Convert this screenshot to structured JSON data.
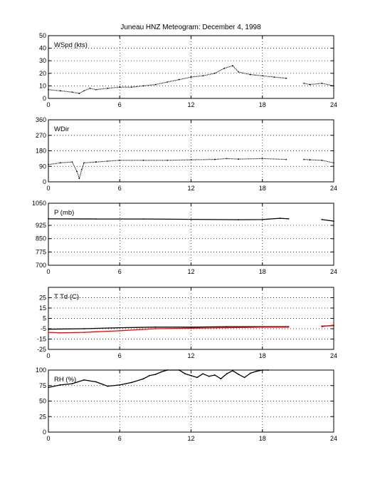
{
  "title": "Juneau HNZ Meteogram:  December  4, 1998",
  "chart_data": [
    {
      "type": "scatter",
      "panel_label": "WSpd (kts)",
      "xlim": [
        0,
        24
      ],
      "ylim": [
        0,
        50
      ],
      "xticks": [
        "0",
        "6",
        "12",
        "18",
        "24"
      ],
      "yticks": [
        "0",
        "10",
        "20",
        "30",
        "40",
        "50"
      ],
      "grid": true,
      "series": [
        {
          "color": "#000000",
          "x": [
            0,
            1,
            2,
            2.6,
            3,
            3.5,
            4,
            5,
            6,
            7,
            8,
            9,
            10,
            11,
            12,
            13,
            14,
            14.8,
            15.5,
            16,
            17,
            18,
            19,
            20,
            20.2,
            21.5,
            22,
            23,
            24
          ],
          "y": [
            7,
            6,
            5,
            4,
            6,
            8,
            7,
            8,
            9,
            9,
            10,
            11,
            13,
            15,
            17,
            18,
            20,
            24,
            26,
            21,
            19,
            18,
            17,
            16,
            null,
            12,
            11,
            12,
            10
          ]
        }
      ]
    },
    {
      "type": "scatter",
      "panel_label": "WDir",
      "xlim": [
        0,
        24
      ],
      "ylim": [
        0,
        360
      ],
      "xticks": [
        "0",
        "6",
        "12",
        "18",
        "24"
      ],
      "yticks": [
        "0",
        "90",
        "180",
        "270",
        "360"
      ],
      "grid": true,
      "series": [
        {
          "color": "#000000",
          "x": [
            0,
            1,
            2,
            2.4,
            2.6,
            2.8,
            3,
            4,
            5,
            6,
            8,
            10,
            12,
            14,
            15,
            16,
            18,
            20,
            20.2,
            21.5,
            22,
            23,
            24
          ],
          "y": [
            100,
            110,
            115,
            60,
            20,
            70,
            110,
            115,
            120,
            125,
            125,
            125,
            128,
            130,
            135,
            132,
            135,
            130,
            null,
            130,
            128,
            125,
            110
          ]
        }
      ]
    },
    {
      "type": "line",
      "panel_label": "P (mb)",
      "xlim": [
        0,
        24
      ],
      "ylim": [
        700,
        1050
      ],
      "xticks": [
        "0",
        "6",
        "12",
        "18",
        "24"
      ],
      "yticks": [
        "700",
        "775",
        "850",
        "925",
        "1050"
      ],
      "grid": true,
      "series": [
        {
          "color": "#000000",
          "x": [
            0,
            4,
            8,
            12,
            16,
            18,
            19.5,
            20.2,
            21.5,
            23,
            24
          ],
          "y": [
            962,
            961,
            961,
            959,
            957,
            958,
            965,
            962,
            null,
            958,
            949
          ]
        }
      ]
    },
    {
      "type": "line",
      "panel_label": "T Td (C)",
      "xlim": [
        0,
        24
      ],
      "ylim": [
        -25,
        35
      ],
      "xticks": [
        "0",
        "6",
        "12",
        "18",
        "24"
      ],
      "yticks": [
        "-25",
        "-15",
        "-5",
        "5",
        "15",
        "25"
      ],
      "grid": true,
      "series": [
        {
          "color": "#000000",
          "x": [
            0,
            3,
            6,
            9,
            12,
            15,
            18,
            20.2,
            21.5,
            23,
            24
          ],
          "y": [
            -5.5,
            -5,
            -4,
            -3.5,
            -3.5,
            -3,
            -3,
            -3,
            null,
            -2.5,
            -2
          ]
        },
        {
          "color": "#ff0000",
          "x": [
            0,
            1,
            3,
            6,
            9,
            12,
            15,
            18,
            20.2,
            21.5,
            23,
            24
          ],
          "y": [
            -8.5,
            -9,
            -8.5,
            -7,
            -5,
            -4.5,
            -4,
            -3.5,
            -3.5,
            null,
            -3,
            -1.5
          ]
        }
      ]
    },
    {
      "type": "line",
      "panel_label": "RH (%)",
      "xlim": [
        0,
        24
      ],
      "ylim": [
        0,
        100
      ],
      "xticks": [
        "0",
        "6",
        "12",
        "18",
        "24"
      ],
      "yticks": [
        "0",
        "25",
        "50",
        "75",
        "100"
      ],
      "grid": true,
      "series": [
        {
          "color": "#000000",
          "x": [
            0,
            1,
            2,
            3,
            4,
            5,
            6,
            7,
            8,
            8.5,
            9,
            9.5,
            10,
            11,
            11.5,
            12,
            12.5,
            13,
            13.5,
            14,
            14.5,
            15,
            15.5,
            16,
            16.5,
            17,
            17.5,
            18,
            18.5
          ],
          "y": [
            72,
            76,
            78,
            84,
            81,
            74,
            76,
            80,
            86,
            91,
            93,
            97,
            100,
            100,
            94,
            91,
            88,
            94,
            90,
            92,
            86,
            94,
            99,
            93,
            88,
            95,
            98,
            100,
            100
          ]
        }
      ]
    }
  ]
}
